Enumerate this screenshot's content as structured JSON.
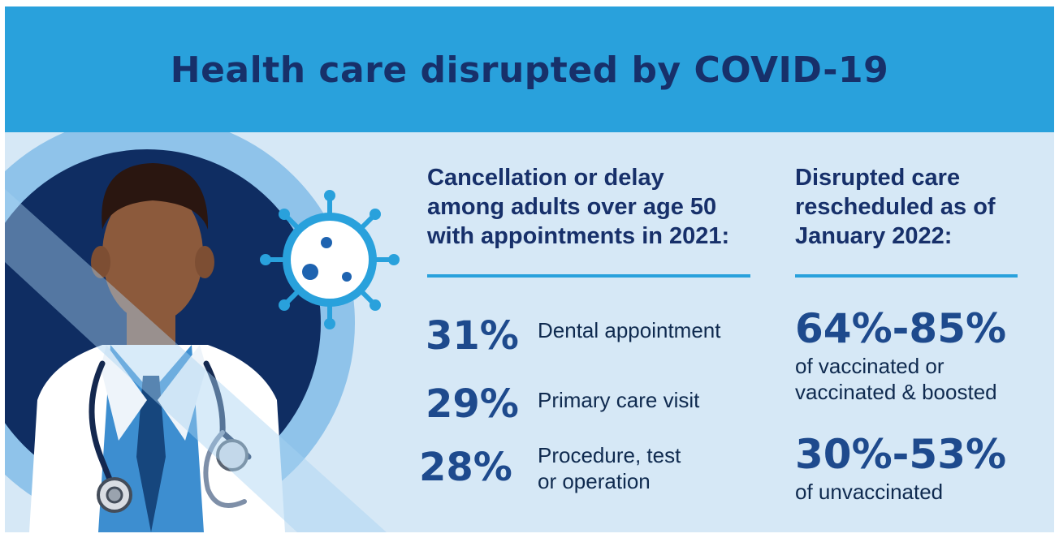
{
  "title": "Health care disrupted by COVID-19",
  "left_column": {
    "heading_lines": [
      "Cancellation or delay",
      "among adults over age 50",
      "with appointments in 2021:"
    ],
    "stats": [
      {
        "value": "31%",
        "label": "Dental appointment"
      },
      {
        "value": "29%",
        "label": "Primary care visit"
      },
      {
        "value": "28%",
        "label": "Procedure, test\nor operation"
      }
    ]
  },
  "right_column": {
    "heading_lines": [
      "Disrupted care",
      "rescheduled as of",
      "January 2022:"
    ],
    "stats": [
      {
        "value": "64%-85%",
        "label": "of vaccinated or\nvaccinated & boosted"
      },
      {
        "value": "30%-53%",
        "label": "of unvaccinated"
      }
    ]
  },
  "illustration": {
    "icons": [
      "doctor-figure",
      "coronavirus-icon",
      "stethoscope-icon"
    ]
  },
  "colors": {
    "header": "#29a1dc",
    "panel": "#d6e8f6",
    "title": "#17306a",
    "stat": "#1e4a8d",
    "navy": "#0f2d62"
  }
}
